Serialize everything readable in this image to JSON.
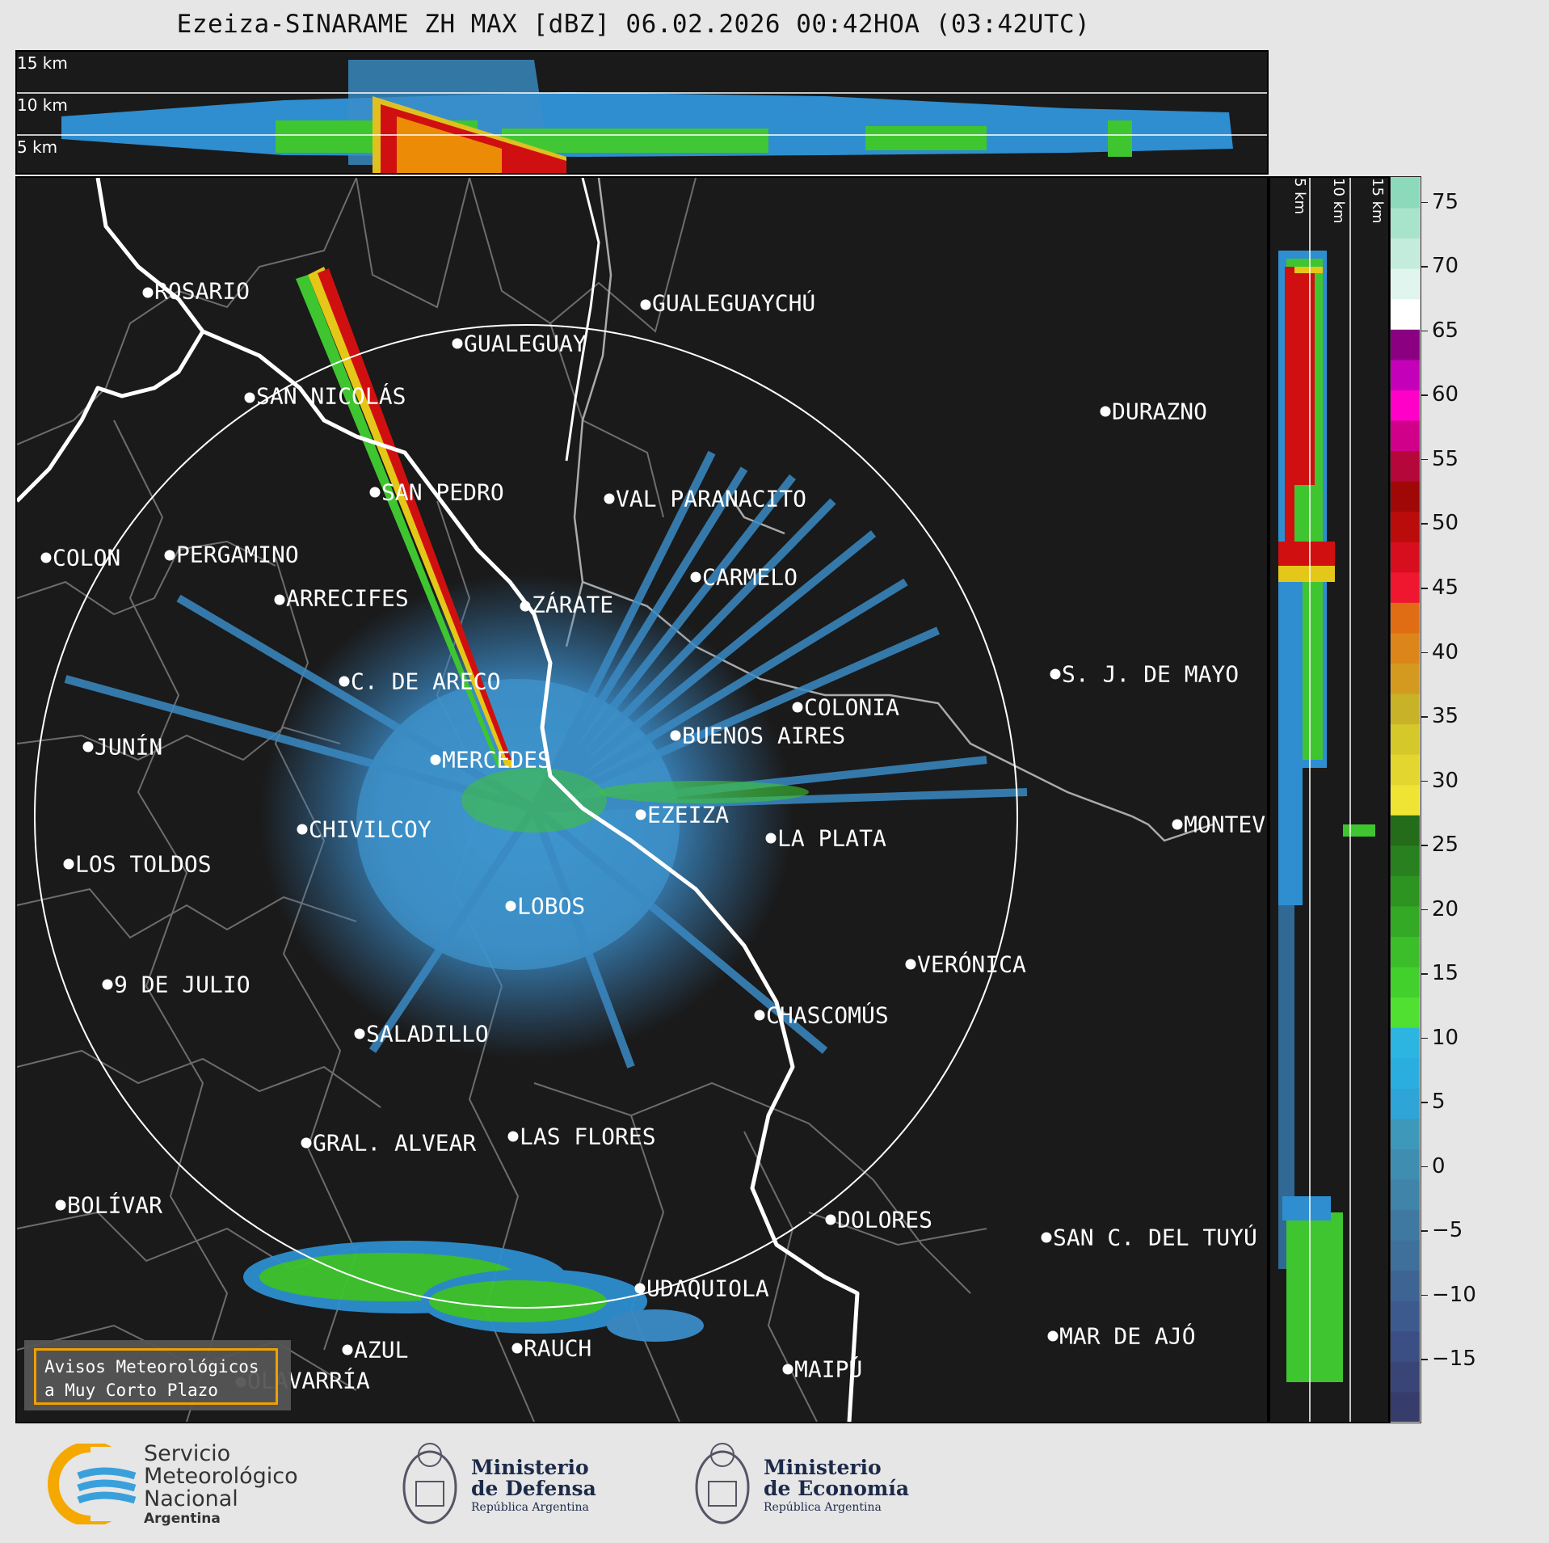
{
  "title": "Ezeiza-SINARAME ZH MAX [dBZ] 06.02.2026 00:42HOA (03:42UTC)",
  "top_profile_labels": [
    "15 km",
    "10 km",
    "5 km"
  ],
  "side_profile_labels": [
    "5 km",
    "10 km",
    "15 km"
  ],
  "colorbar": {
    "unit": "dBZ",
    "ticks": [
      "75",
      "70",
      "65",
      "60",
      "55",
      "50",
      "45",
      "40",
      "35",
      "30",
      "25",
      "20",
      "15",
      "10",
      "5",
      "0",
      "−5",
      "−10",
      "−15"
    ],
    "range": [
      -20,
      77
    ]
  },
  "cities": [
    {
      "name": "ROSARIO"
    },
    {
      "name": "GUALEGUAYCHÚ"
    },
    {
      "name": "GUALEGUAY"
    },
    {
      "name": "SAN NICOLÁS"
    },
    {
      "name": "DURAZNO"
    },
    {
      "name": "SAN PEDRO"
    },
    {
      "name": "VAL PARANACITO"
    },
    {
      "name": "COLON"
    },
    {
      "name": "PERGAMINO"
    },
    {
      "name": "ARRECIFES"
    },
    {
      "name": "CARMELO"
    },
    {
      "name": "ZÁRATE"
    },
    {
      "name": "S. J. DE MAYO"
    },
    {
      "name": "C. DE ARECO"
    },
    {
      "name": "COLONIA"
    },
    {
      "name": "JUNÍN"
    },
    {
      "name": "BUENOS AIRES"
    },
    {
      "name": "MERCEDES"
    },
    {
      "name": "EZEIZA"
    },
    {
      "name": "MONTEVIDEO"
    },
    {
      "name": "CHIVILCOY"
    },
    {
      "name": "LA PLATA"
    },
    {
      "name": "LOS TOLDOS"
    },
    {
      "name": "LOBOS"
    },
    {
      "name": "VERÓNICA"
    },
    {
      "name": "9 DE JULIO"
    },
    {
      "name": "CHASCOMÚS"
    },
    {
      "name": "SALADILLO"
    },
    {
      "name": "GRAL. ALVEAR"
    },
    {
      "name": "LAS FLORES"
    },
    {
      "name": "BOLÍVAR"
    },
    {
      "name": "DOLORES"
    },
    {
      "name": "SAN C. DEL TUYÚ"
    },
    {
      "name": "UDAQUIOLA"
    },
    {
      "name": "MAR DE AJÓ"
    },
    {
      "name": "AZUL"
    },
    {
      "name": "RAUCH"
    },
    {
      "name": "OLAVARRÍA"
    },
    {
      "name": "MAIPÚ"
    }
  ],
  "badge": {
    "line1": "Avisos Meteorológicos",
    "line2": "a Muy Corto Plazo"
  },
  "logos": {
    "smn": {
      "line1": "Servicio",
      "line2": "Meteorológico",
      "line3": "Nacional",
      "line4": "Argentina"
    },
    "defensa": {
      "line1": "Ministerio",
      "line2": "de Defensa",
      "line3": "República Argentina"
    },
    "economia": {
      "line1": "Ministerio",
      "line2": "de Economía",
      "line3": "República Argentina"
    }
  },
  "colors": {
    "background": "#1a1a1a",
    "echo_weak": "#3d8fc4",
    "echo_moderate": "#39c832",
    "echo_strong": "#d01010",
    "badge_border": "#f0a000"
  }
}
